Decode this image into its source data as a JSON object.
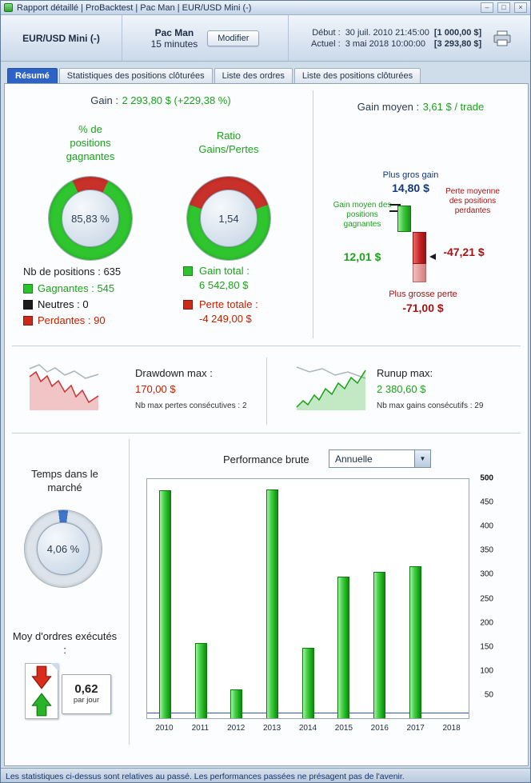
{
  "colors": {
    "gain_green": "#1ca21c",
    "donut_green": "#2fc52f",
    "loss_red": "#c8302a",
    "dark_red": "#a51414",
    "navy": "#14387c",
    "active_tab_blue": "#2e63c6",
    "bar_green": "#2cc42c",
    "gauge_blue": "#4076c8"
  },
  "window": {
    "title": "Rapport détaillé | ProBacktest | Pac Man | EUR/USD Mini (-)",
    "minimize": "–",
    "maximize": "□",
    "close": "×"
  },
  "header": {
    "instrument": "EUR/USD Mini (-)",
    "strategy": "Pac Man",
    "timeframe": "15 minutes",
    "modify": "Modifier",
    "start_label": "Début :",
    "start_date": "30 juil. 2010 21:45:00",
    "start_capital": "[1 000,00 $]",
    "current_label": "Actuel :",
    "current_date": "3 mai 2018 10:00:00",
    "current_capital": "[3 293,80 $]"
  },
  "tabs": {
    "resume": "Résumé",
    "stats": "Statistiques des positions clôturées",
    "orders": "Liste des ordres",
    "positions": "Liste des positions clôturées"
  },
  "summary": {
    "gain_label": "Gain :",
    "gain_value": "2 293,80 $ (+229,38 %)",
    "avg_gain_label": "Gain moyen :",
    "avg_gain_value": "3,61 $ / trade",
    "winning_title": "% de positions gagnantes",
    "winning_value": "85,83 %",
    "winning_pct_num": 85.83,
    "losing_pct_num": 14.17,
    "ratio_title": "Ratio Gains/Pertes",
    "ratio_value": "1,54",
    "loss_share_pct": 39.4,
    "nb_positions": "Nb de positions : 635",
    "legend_win": "Gagnantes : 545",
    "legend_neutral": "Neutres : 0",
    "legend_loss": "Perdantes : 90",
    "gain_total_label": "Gain total :",
    "gain_total_value": "6 542,80 $",
    "loss_total_label": "Perte totale :",
    "loss_total_value": "-4 249,00 $",
    "biggest_gain_label": "Plus gros gain",
    "biggest_gain_value": "14,80 $",
    "avg_win_label": "Gain moyen des positions gagnantes",
    "avg_win_value": "12,01 $",
    "avg_loss_label": "Perte moyenne des positions perdantes",
    "avg_loss_value": "-47,21 $",
    "biggest_loss_label": "Plus grosse perte",
    "biggest_loss_value": "-71,00 $"
  },
  "drawdown": {
    "label": "Drawdown max :",
    "value": "170,00 $",
    "sub": "Nb max pertes consécutives : 2"
  },
  "runup": {
    "label": "Runup max:",
    "value": "2 380,60 $",
    "sub": "Nb max gains consécutifs : 29"
  },
  "market_time": {
    "title": "Temps dans le marché",
    "value": "4,06 %",
    "pct": 4.06
  },
  "orders_per_day": {
    "title": "Moy d'ordres exécutés :",
    "value": "0,62",
    "unit": "par jour"
  },
  "performance": {
    "title": "Performance brute",
    "period": "Annuelle"
  },
  "chart_data": {
    "type": "bar",
    "title": "Performance brute — Annuelle",
    "categories": [
      "2010",
      "2011",
      "2012",
      "2013",
      "2014",
      "2015",
      "2016",
      "2017",
      "2018"
    ],
    "values": [
      477,
      158,
      60,
      478,
      148,
      296,
      306,
      317,
      0
    ],
    "xlabel": "",
    "ylabel": "",
    "ylim": [
      0,
      500
    ],
    "yticks": [
      50,
      100,
      150,
      200,
      250,
      300,
      350,
      400,
      450,
      500
    ],
    "baseline_value": 10,
    "grid": false,
    "legend_position": "none"
  },
  "status_bar": "Les statistiques ci-dessus sont relatives au passé. Les performances passées ne présagent pas de l'avenir."
}
